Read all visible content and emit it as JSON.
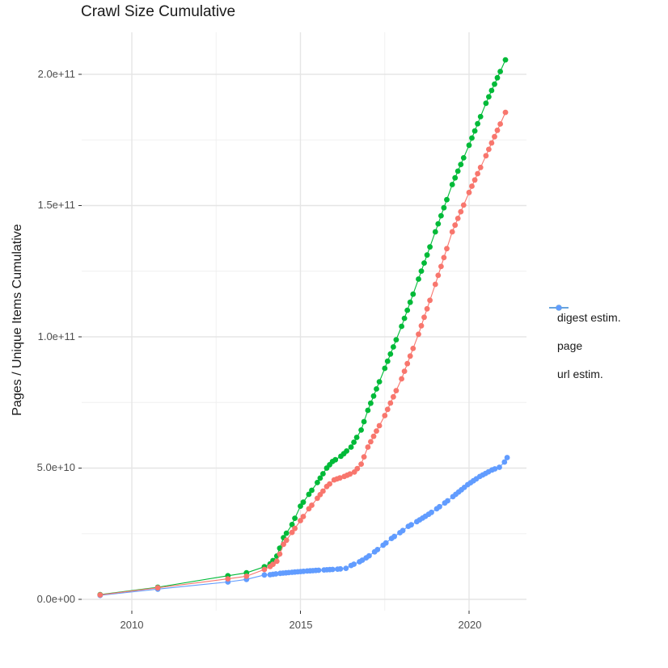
{
  "title": "Crawl Size Cumulative",
  "y_axis": {
    "label": "Pages / Unique Items Cumulative",
    "ticks": [
      {
        "label": "0.0e+00",
        "value_billions": 0
      },
      {
        "label": "5.0e+10",
        "value_billions": 50
      },
      {
        "label": "1.0e+11",
        "value_billions": 100
      },
      {
        "label": "1.5e+11",
        "value_billions": 150
      },
      {
        "label": "2.0e+11",
        "value_billions": 200
      }
    ],
    "minor_billions": [
      25,
      75,
      125,
      175
    ]
  },
  "x_axis": {
    "ticks": [
      {
        "label": "2010",
        "value": 2010
      },
      {
        "label": "2015",
        "value": 2015
      },
      {
        "label": "2020",
        "value": 2020
      }
    ],
    "minor": [
      2012.5,
      2017.5
    ]
  },
  "legend": {
    "items": [
      {
        "label": "digest estim.",
        "color": "#F8766D"
      },
      {
        "label": "page",
        "color": "#00BA38"
      },
      {
        "label": "url estim.",
        "color": "#619CFF"
      }
    ]
  },
  "colors": {
    "grid_major": "#e5e5e5",
    "grid_minor": "#f0f0f0",
    "tick_mark": "#333333",
    "tick_text": "#4d4d4d",
    "text": "#1a1a1a"
  },
  "chart_data": {
    "type": "line",
    "title": "Crawl Size Cumulative",
    "xlabel": "",
    "ylabel": "Pages / Unique Items Cumulative",
    "x_unit": "calendar year (decimal)",
    "value_unit": "billions of items (1e9)",
    "xlim": [
      2008.55,
      2021.95
    ],
    "ylim_billions": [
      0,
      216
    ],
    "grid": true,
    "legend_position": "right",
    "marker": "filled circle, ~7px, with thin connecting line",
    "point_interval_years": 0.085,
    "series": [
      {
        "name": "digest estim.",
        "color": "#F8766D",
        "points": [
          [
            2009.06,
            1.7
          ],
          [
            2010.77,
            4.4
          ],
          [
            2012.85,
            7.8
          ],
          [
            2013.4,
            8.8
          ],
          [
            2013.93,
            11.4
          ],
          [
            2014.1,
            12.5
          ],
          [
            2014.3,
            14.5
          ],
          [
            2014.5,
            21
          ],
          [
            2014.75,
            25.5
          ],
          [
            2015.0,
            30
          ],
          [
            2015.25,
            34.5
          ],
          [
            2015.5,
            38.5
          ],
          [
            2015.78,
            43
          ],
          [
            2016.0,
            45.5
          ],
          [
            2016.3,
            46.8
          ],
          [
            2016.6,
            48.5
          ],
          [
            2016.8,
            51.5
          ],
          [
            2017.0,
            58
          ],
          [
            2017.5,
            70
          ],
          [
            2018.0,
            84
          ],
          [
            2018.5,
            101
          ],
          [
            2019.0,
            120
          ],
          [
            2019.5,
            140
          ],
          [
            2020.0,
            155
          ],
          [
            2020.5,
            169
          ],
          [
            2021.08,
            185.5
          ]
        ]
      },
      {
        "name": "page",
        "color": "#00BA38",
        "points": [
          [
            2009.06,
            1.8
          ],
          [
            2010.77,
            4.6
          ],
          [
            2012.85,
            9.0
          ],
          [
            2013.4,
            10.1
          ],
          [
            2013.93,
            12.4
          ],
          [
            2014.1,
            13.5
          ],
          [
            2014.3,
            16.5
          ],
          [
            2014.5,
            23.5
          ],
          [
            2014.75,
            28.5
          ],
          [
            2015.0,
            35.5
          ],
          [
            2015.25,
            40
          ],
          [
            2015.5,
            44.5
          ],
          [
            2015.78,
            50
          ],
          [
            2015.95,
            52.5
          ],
          [
            2016.2,
            54.5
          ],
          [
            2016.5,
            58
          ],
          [
            2016.8,
            64.5
          ],
          [
            2017.0,
            72
          ],
          [
            2017.5,
            88
          ],
          [
            2018.0,
            104
          ],
          [
            2018.5,
            122
          ],
          [
            2019.0,
            140
          ],
          [
            2019.5,
            158
          ],
          [
            2020.0,
            173
          ],
          [
            2020.5,
            189
          ],
          [
            2021.08,
            205.5
          ]
        ]
      },
      {
        "name": "url estim.",
        "color": "#619CFF",
        "points": [
          [
            2009.06,
            1.5
          ],
          [
            2010.77,
            3.9
          ],
          [
            2012.85,
            6.6
          ],
          [
            2013.4,
            7.6
          ],
          [
            2013.93,
            9.3
          ],
          [
            2014.1,
            9.4
          ],
          [
            2014.4,
            9.9
          ],
          [
            2014.75,
            10.3
          ],
          [
            2015.2,
            10.8
          ],
          [
            2015.7,
            11.2
          ],
          [
            2016.1,
            11.5
          ],
          [
            2016.35,
            11.8
          ],
          [
            2016.5,
            12.9
          ],
          [
            2016.75,
            14.3
          ],
          [
            2016.95,
            15.8
          ],
          [
            2017.2,
            18.1
          ],
          [
            2017.45,
            20.6
          ],
          [
            2017.7,
            23.2
          ],
          [
            2017.95,
            25.4
          ],
          [
            2018.2,
            27.8
          ],
          [
            2018.45,
            29.6
          ],
          [
            2018.8,
            32.4
          ],
          [
            2019.04,
            34.5
          ],
          [
            2019.28,
            36.7
          ],
          [
            2019.52,
            39.1
          ],
          [
            2019.96,
            43.7
          ],
          [
            2020.32,
            46.8
          ],
          [
            2020.68,
            49.3
          ],
          [
            2020.9,
            50.3
          ],
          [
            2021.05,
            52.3
          ],
          [
            2021.13,
            54.0
          ]
        ]
      }
    ]
  }
}
